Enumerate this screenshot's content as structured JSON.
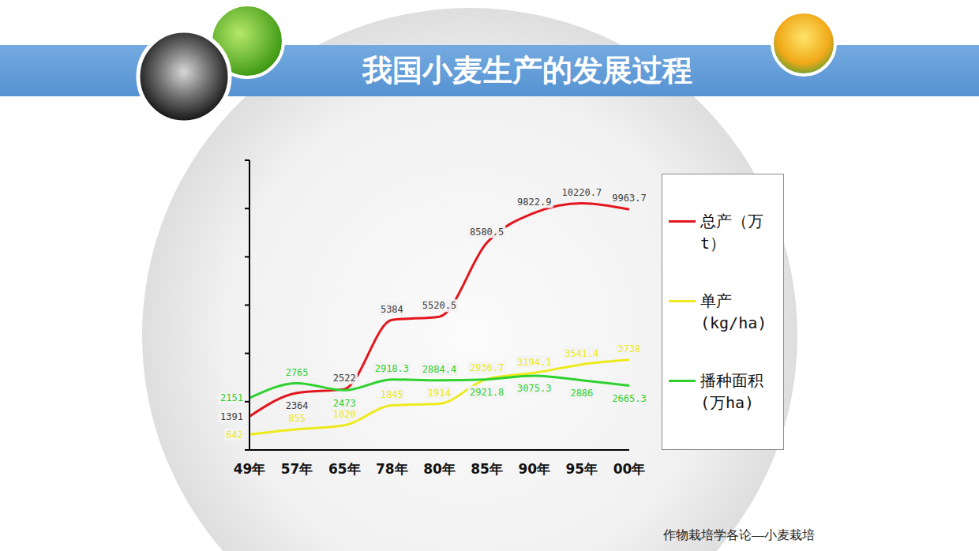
{
  "chart_data": {
    "type": "line",
    "title": "我国小麦生产的发展过程",
    "categories": [
      "49年",
      "57年",
      "65年",
      "78年",
      "80年",
      "85年",
      "90年",
      "95年",
      "00年"
    ],
    "series": [
      {
        "name": "总产（万t）",
        "color": "#e3161e",
        "values": [
          1391,
          2364,
          2522,
          5384,
          5520.5,
          8580.5,
          9822.9,
          10220.7,
          9963.7
        ]
      },
      {
        "name": "单产(kg/ha)",
        "color": "#eeea1c",
        "values": [
          642,
          855,
          1020,
          1845,
          1914,
          2936.7,
          3194.1,
          3541.4,
          3738
        ]
      },
      {
        "name": "播种面积(万ha)",
        "color": "#2fd12f",
        "values": [
          2151,
          2765,
          2473,
          2918.3,
          2884.4,
          2921.8,
          3075.3,
          2886,
          2665.3
        ]
      }
    ],
    "ylim": [
      0,
      12000
    ],
    "yticks": [
      0,
      2000,
      4000,
      6000,
      8000,
      10000,
      12000
    ],
    "tick_labels": "x",
    "data_labels": true,
    "legend": "right",
    "grid": false,
    "marker": "none",
    "line_style": "solid"
  },
  "footer": "作物栽培学各论—小麦栽培"
}
